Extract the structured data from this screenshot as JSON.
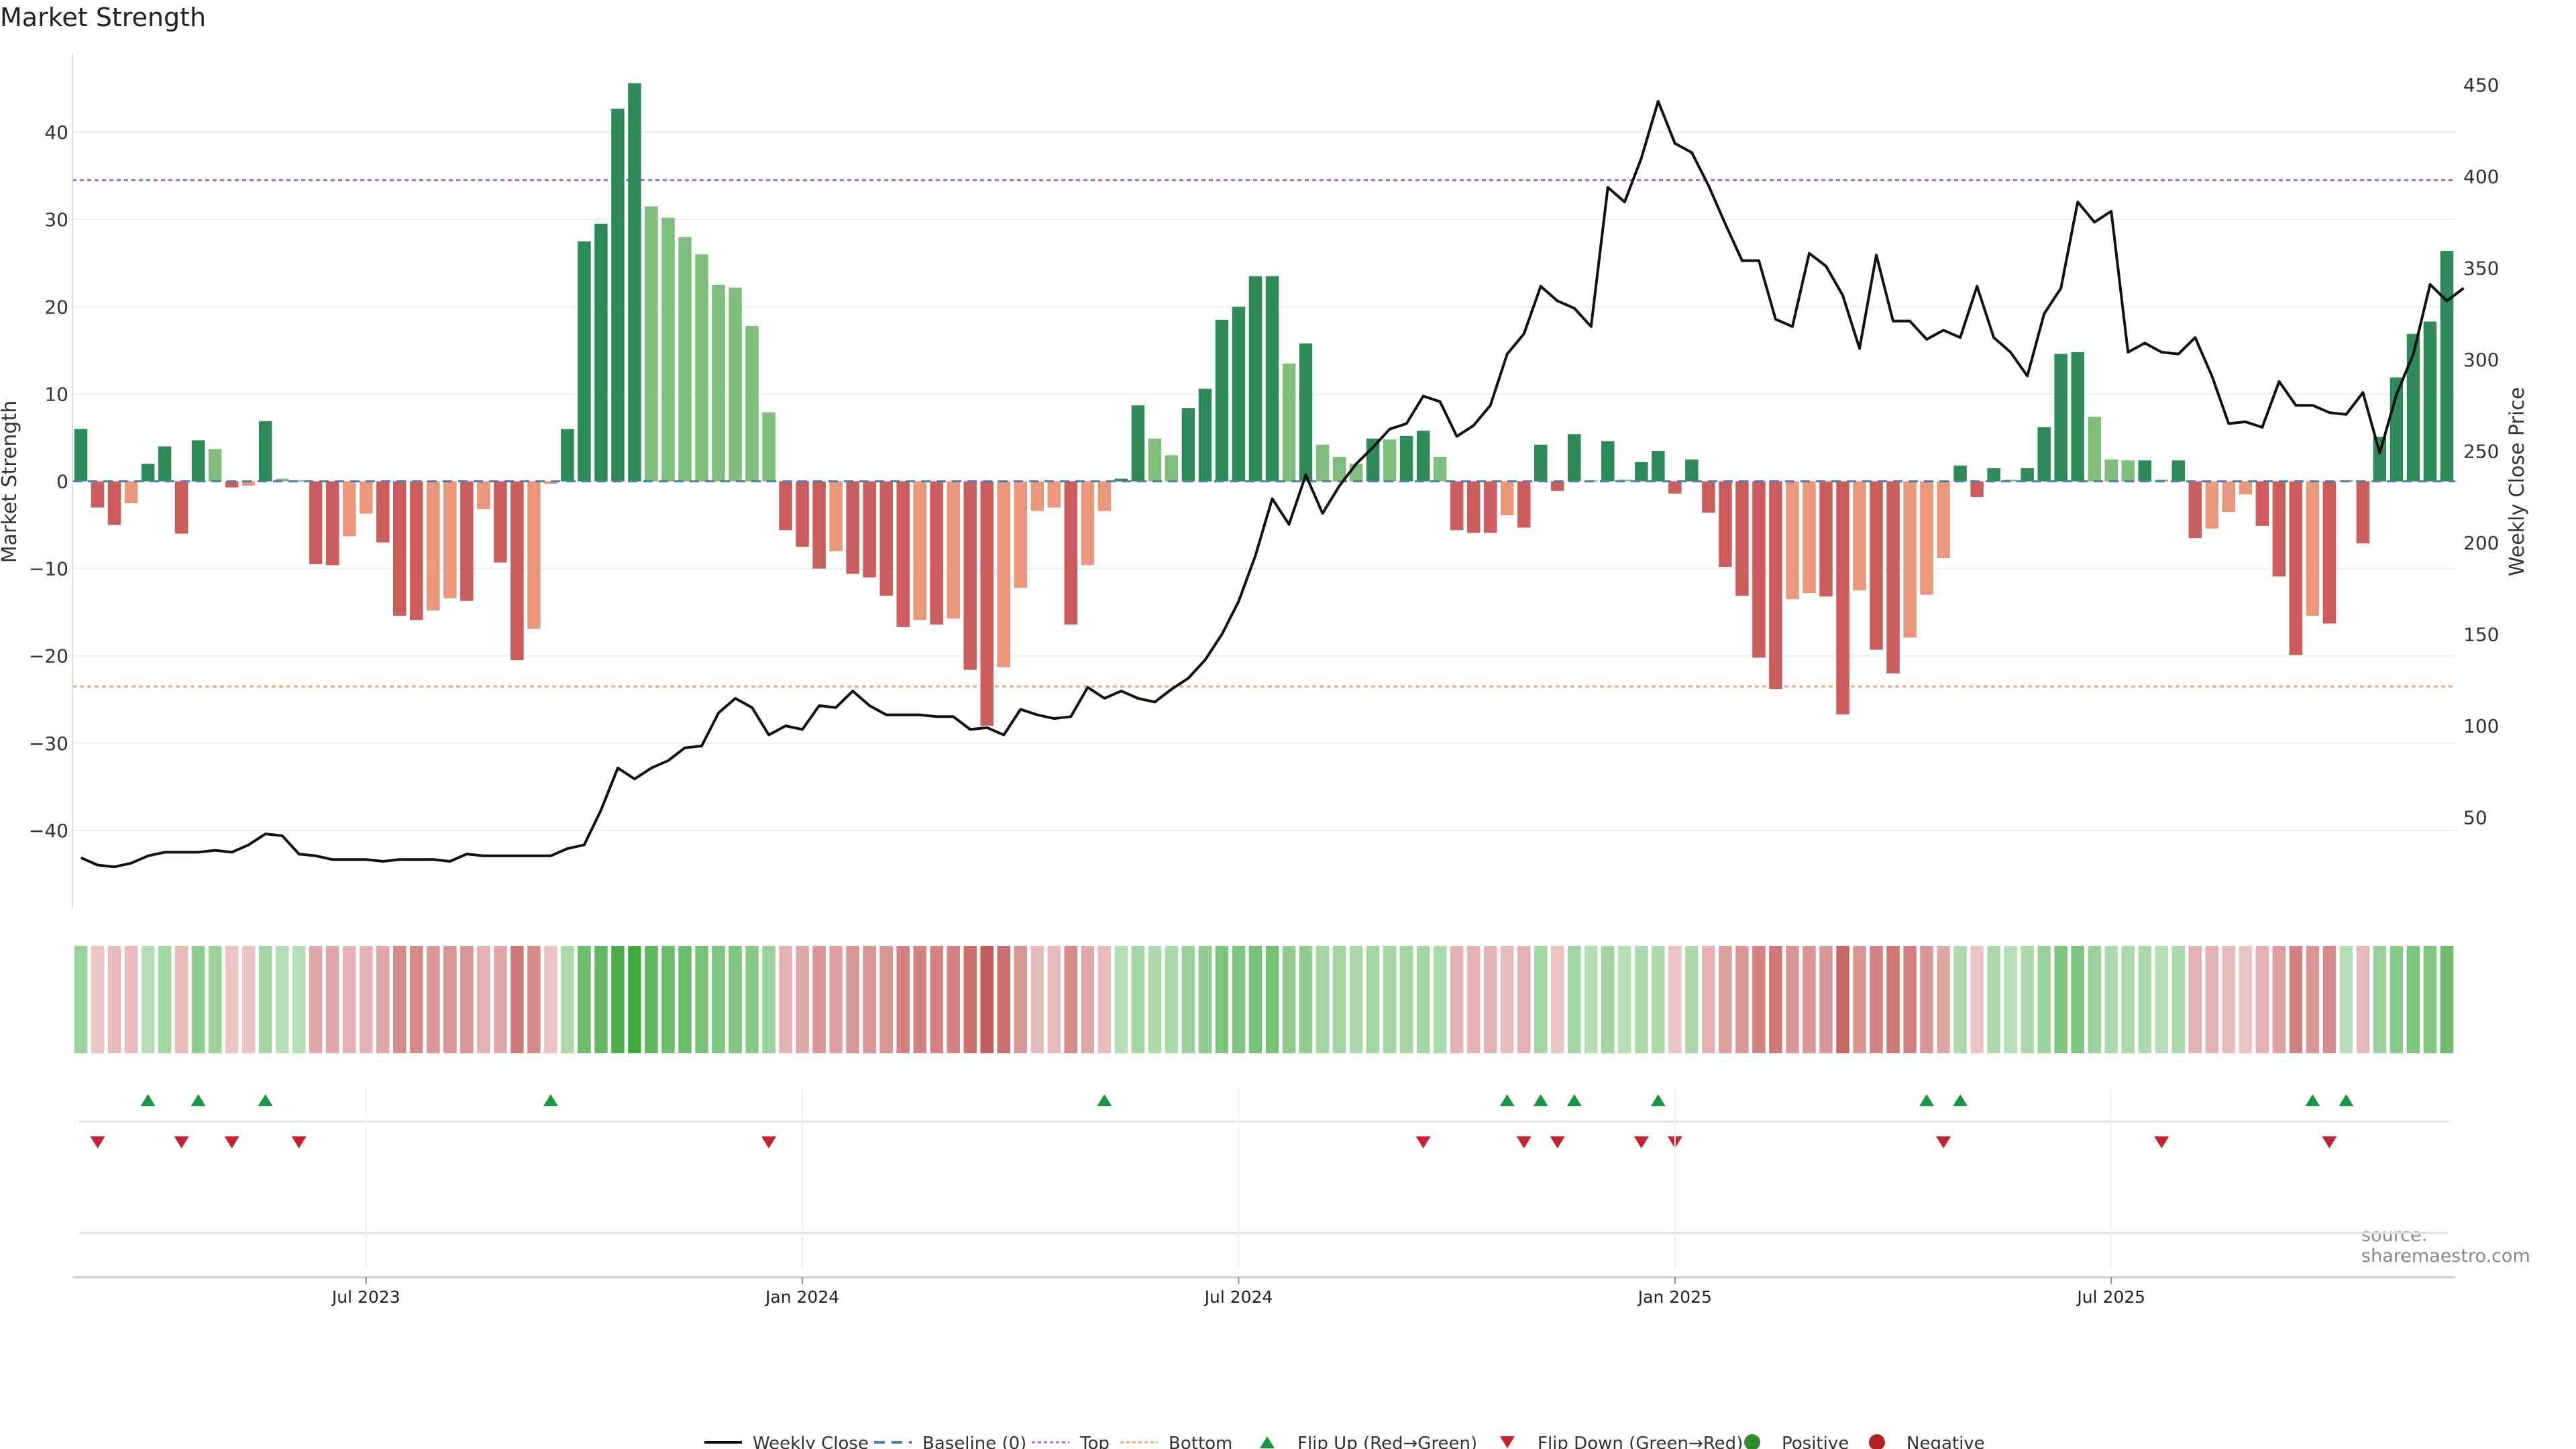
{
  "chart_data": {
    "type": "bar+line",
    "title": "Market Strength",
    "source": "source: sharemaestro.com",
    "ylabel_left": "Market Strength",
    "ylabel_right": "Weekly Close Price",
    "ylim_left": [
      -49,
      49
    ],
    "ylim_right": [
      0,
      467
    ],
    "yticks_left": [
      "40",
      "30",
      "20",
      "10",
      "0",
      "−10",
      "−20",
      "−30",
      "−40"
    ],
    "ytick_values_left": [
      40,
      30,
      20,
      10,
      0,
      -10,
      -20,
      -30,
      -40
    ],
    "yticks_right": [
      "450",
      "400",
      "350",
      "300",
      "250",
      "200",
      "150",
      "100",
      "50"
    ],
    "ytick_values_right": [
      450,
      400,
      350,
      300,
      250,
      200,
      150,
      100,
      50
    ],
    "top_threshold": 34.5,
    "bottom_threshold": -23.5,
    "x_ticks": [
      {
        "label": "Jul 2023",
        "week": 17
      },
      {
        "label": "Jan 2024",
        "week": 43
      },
      {
        "label": "Jul 2024",
        "week": 69
      },
      {
        "label": "Jan 2025",
        "week": 95
      },
      {
        "label": "Jul 2025",
        "week": 121
      }
    ],
    "strength": [
      6,
      -3,
      -5,
      -2.5,
      2,
      4,
      -6,
      4.7,
      3.7,
      -0.7,
      -0.5,
      6.9,
      0.3,
      0.1,
      -9.5,
      -9.6,
      -6.3,
      -3.7,
      -7,
      -15.4,
      -15.9,
      -14.8,
      -13.4,
      -13.7,
      -3.2,
      -9.3,
      -20.5,
      -16.9,
      -0.3,
      6,
      27.5,
      29.5,
      42.7,
      45.6,
      31.5,
      30.2,
      28,
      26,
      22.5,
      22.2,
      17.8,
      7.9,
      -5.6,
      -7.5,
      -10,
      -8,
      -10.6,
      -11,
      -13.1,
      -16.7,
      -15.9,
      -16.4,
      -15.7,
      -21.6,
      -28,
      -21.3,
      -12.2,
      -3.4,
      -3,
      -16.4,
      -9.6,
      -3.4,
      0.3,
      8.7,
      4.9,
      3,
      8.4,
      10.6,
      18.5,
      20,
      23.5,
      23.5,
      13.5,
      15.8,
      4.2,
      2.8,
      2,
      4.9,
      4.8,
      5.2,
      5.8,
      2.8,
      -5.6,
      -5.9,
      -5.9,
      -3.9,
      -5.3,
      4.2,
      -1.1,
      5.4,
      0.1,
      4.6,
      0.2,
      2.2,
      3.5,
      -1.4,
      2.5,
      -3.6,
      -9.8,
      -13.1,
      -20.2,
      -23.8,
      -13.5,
      -12.8,
      -13.2,
      -26.7,
      -12.5,
      -19.3,
      -22,
      -17.9,
      -13,
      -8.8,
      1.8,
      -1.8,
      1.5,
      0.2,
      1.5,
      6.2,
      14.6,
      14.8,
      7.4,
      2.5,
      2.4,
      2.4,
      0.2,
      2.4,
      -6.5,
      -5.4,
      -3.5,
      -1.5,
      -5.1,
      -10.9,
      -19.9,
      -15.4,
      -16.3,
      0.1,
      -7.1,
      5.1,
      11.9,
      16.9,
      18.3,
      26.4
    ],
    "weekly_close": [
      28,
      24,
      23,
      25,
      29,
      31,
      31,
      31,
      32,
      31,
      35,
      41,
      40,
      30,
      29,
      27,
      27,
      27,
      26,
      27,
      27,
      27,
      26,
      30,
      29,
      29,
      29,
      29,
      29,
      33,
      35,
      54,
      77,
      71,
      77,
      81,
      88,
      89,
      107,
      115,
      110,
      95,
      100,
      98,
      111,
      110,
      119,
      111,
      106,
      106,
      106,
      105,
      105,
      98,
      99,
      95,
      109,
      106,
      104,
      105,
      121,
      115,
      119,
      115,
      113,
      120,
      126,
      136,
      150,
      168,
      193,
      224,
      210,
      237,
      216,
      231,
      243,
      252,
      262,
      265,
      280,
      277,
      258,
      264,
      275,
      303,
      314,
      340,
      332,
      328,
      318,
      394,
      386,
      410,
      441,
      418,
      413,
      395,
      374,
      354,
      354,
      322,
      318,
      358,
      351,
      335,
      306,
      357,
      321,
      321,
      311,
      316,
      312,
      340,
      312,
      304,
      291,
      325,
      339,
      386,
      375,
      381,
      304,
      309,
      304,
      303,
      312,
      291,
      265,
      266,
      263,
      288,
      275,
      275,
      271,
      270,
      282,
      249,
      281,
      303,
      341,
      332,
      339
    ],
    "heat_intensity": [
      0.45,
      0.2,
      0.25,
      0.25,
      0.3,
      0.4,
      0.25,
      0.5,
      0.45,
      0.2,
      0.2,
      0.4,
      0.3,
      0.3,
      0.35,
      0.35,
      0.3,
      0.3,
      0.35,
      0.5,
      0.5,
      0.45,
      0.45,
      0.45,
      0.3,
      0.35,
      0.6,
      0.5,
      0.2,
      0.35,
      0.7,
      0.75,
      0.9,
      0.95,
      0.75,
      0.7,
      0.7,
      0.65,
      0.6,
      0.6,
      0.55,
      0.45,
      0.3,
      0.35,
      0.45,
      0.4,
      0.45,
      0.45,
      0.45,
      0.55,
      0.55,
      0.55,
      0.55,
      0.65,
      0.75,
      0.65,
      0.45,
      0.25,
      0.25,
      0.5,
      0.35,
      0.25,
      0.3,
      0.4,
      0.35,
      0.35,
      0.45,
      0.5,
      0.6,
      0.6,
      0.65,
      0.65,
      0.5,
      0.5,
      0.4,
      0.4,
      0.35,
      0.4,
      0.4,
      0.4,
      0.4,
      0.35,
      0.3,
      0.3,
      0.3,
      0.25,
      0.3,
      0.4,
      0.2,
      0.4,
      0.3,
      0.4,
      0.3,
      0.35,
      0.35,
      0.2,
      0.35,
      0.3,
      0.4,
      0.45,
      0.55,
      0.6,
      0.45,
      0.45,
      0.45,
      0.7,
      0.45,
      0.55,
      0.6,
      0.55,
      0.45,
      0.35,
      0.35,
      0.2,
      0.35,
      0.3,
      0.35,
      0.45,
      0.6,
      0.6,
      0.45,
      0.35,
      0.35,
      0.35,
      0.3,
      0.35,
      0.3,
      0.3,
      0.25,
      0.2,
      0.3,
      0.4,
      0.55,
      0.45,
      0.5,
      0.3,
      0.25,
      0.45,
      0.55,
      0.6,
      0.6,
      0.7
    ],
    "flip_up_weeks": [
      4,
      7,
      11,
      28,
      61,
      85,
      87,
      89,
      94,
      110,
      112,
      133,
      135
    ],
    "flip_down_weeks": [
      1,
      6,
      9,
      13,
      41,
      80,
      86,
      88,
      93,
      95,
      111,
      124,
      134
    ],
    "legend": [
      "Weekly Close",
      "Baseline (0)",
      "Top",
      "Bottom",
      "Flip Up (Red→Green)",
      "Flip Down (Green→Red)",
      "Positive",
      "Negative"
    ],
    "colors": {
      "strong_positive": "#2e8b57",
      "weak_positive": "#7fbf7b",
      "strong_negative": "#cd5c5c",
      "weak_negative": "#e9967a",
      "line": "#111111",
      "baseline": "#4682b4",
      "top_line": "#b266c8",
      "bottom_line": "#f0a868",
      "flip_up": "#1a9641",
      "flip_down": "#c8232c",
      "positive_dot": "#2e8b2e",
      "negative_dot": "#b22222"
    }
  }
}
